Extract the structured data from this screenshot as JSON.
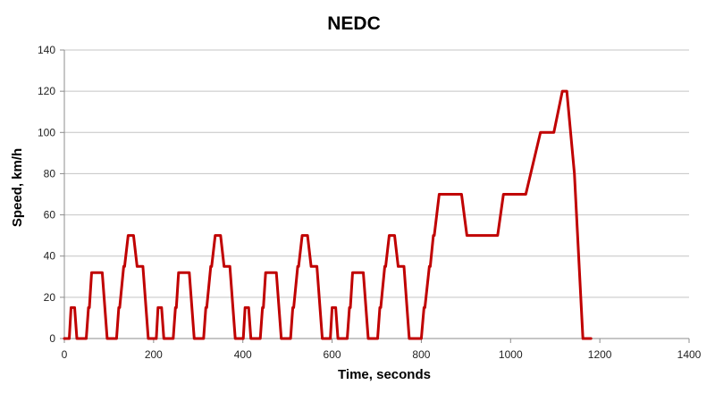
{
  "chart_data": {
    "type": "line",
    "title": "NEDC",
    "xlabel": "Time, seconds",
    "ylabel": "Speed, km/h",
    "xlim": [
      0,
      1400
    ],
    "ylim": [
      0,
      140
    ],
    "x_ticks": [
      0,
      200,
      400,
      600,
      800,
      1000,
      1200,
      1400
    ],
    "y_ticks": [
      0,
      20,
      40,
      60,
      80,
      100,
      120,
      140
    ],
    "grid": "horizontal",
    "legend": "none",
    "colors": {
      "series": "#c00000",
      "grid": "#c4c4c4",
      "axis": "#8c8c8c"
    },
    "series": [
      {
        "points": [
          [
            0,
            0
          ],
          [
            11,
            0
          ],
          [
            15,
            15
          ],
          [
            23,
            15
          ],
          [
            28,
            0
          ],
          [
            49,
            0
          ],
          [
            54,
            15
          ],
          [
            56,
            15
          ],
          [
            61,
            32
          ],
          [
            85,
            32
          ],
          [
            96,
            0
          ],
          [
            117,
            0
          ],
          [
            122,
            15
          ],
          [
            124,
            15
          ],
          [
            133,
            35
          ],
          [
            135,
            35
          ],
          [
            143,
            50
          ],
          [
            155,
            50
          ],
          [
            163,
            35
          ],
          [
            176,
            35
          ],
          [
            188,
            0
          ],
          [
            195,
            0
          ],
          [
            206,
            0
          ],
          [
            210,
            15
          ],
          [
            218,
            15
          ],
          [
            223,
            0
          ],
          [
            244,
            0
          ],
          [
            249,
            15
          ],
          [
            251,
            15
          ],
          [
            256,
            32
          ],
          [
            280,
            32
          ],
          [
            291,
            0
          ],
          [
            312,
            0
          ],
          [
            317,
            15
          ],
          [
            319,
            15
          ],
          [
            328,
            35
          ],
          [
            330,
            35
          ],
          [
            338,
            50
          ],
          [
            350,
            50
          ],
          [
            358,
            35
          ],
          [
            371,
            35
          ],
          [
            383,
            0
          ],
          [
            390,
            0
          ],
          [
            401,
            0
          ],
          [
            405,
            15
          ],
          [
            413,
            15
          ],
          [
            418,
            0
          ],
          [
            439,
            0
          ],
          [
            444,
            15
          ],
          [
            446,
            15
          ],
          [
            451,
            32
          ],
          [
            475,
            32
          ],
          [
            486,
            0
          ],
          [
            507,
            0
          ],
          [
            512,
            15
          ],
          [
            514,
            15
          ],
          [
            523,
            35
          ],
          [
            525,
            35
          ],
          [
            533,
            50
          ],
          [
            545,
            50
          ],
          [
            553,
            35
          ],
          [
            566,
            35
          ],
          [
            578,
            0
          ],
          [
            585,
            0
          ],
          [
            596,
            0
          ],
          [
            600,
            15
          ],
          [
            608,
            15
          ],
          [
            613,
            0
          ],
          [
            634,
            0
          ],
          [
            639,
            15
          ],
          [
            641,
            15
          ],
          [
            646,
            32
          ],
          [
            670,
            32
          ],
          [
            681,
            0
          ],
          [
            702,
            0
          ],
          [
            707,
            15
          ],
          [
            709,
            15
          ],
          [
            718,
            35
          ],
          [
            720,
            35
          ],
          [
            728,
            50
          ],
          [
            740,
            50
          ],
          [
            748,
            35
          ],
          [
            761,
            35
          ],
          [
            773,
            0
          ],
          [
            780,
            0
          ],
          [
            800,
            0
          ],
          [
            806,
            15
          ],
          [
            808,
            15
          ],
          [
            818,
            35
          ],
          [
            820,
            35
          ],
          [
            827,
            50
          ],
          [
            829,
            50
          ],
          [
            840,
            70
          ],
          [
            890,
            70
          ],
          [
            902,
            50
          ],
          [
            971,
            50
          ],
          [
            984,
            70
          ],
          [
            1034,
            70
          ],
          [
            1067,
            100
          ],
          [
            1097,
            100
          ],
          [
            1116,
            120
          ],
          [
            1126,
            120
          ],
          [
            1143,
            80
          ],
          [
            1162,
            0
          ],
          [
            1180,
            0
          ]
        ]
      }
    ]
  }
}
